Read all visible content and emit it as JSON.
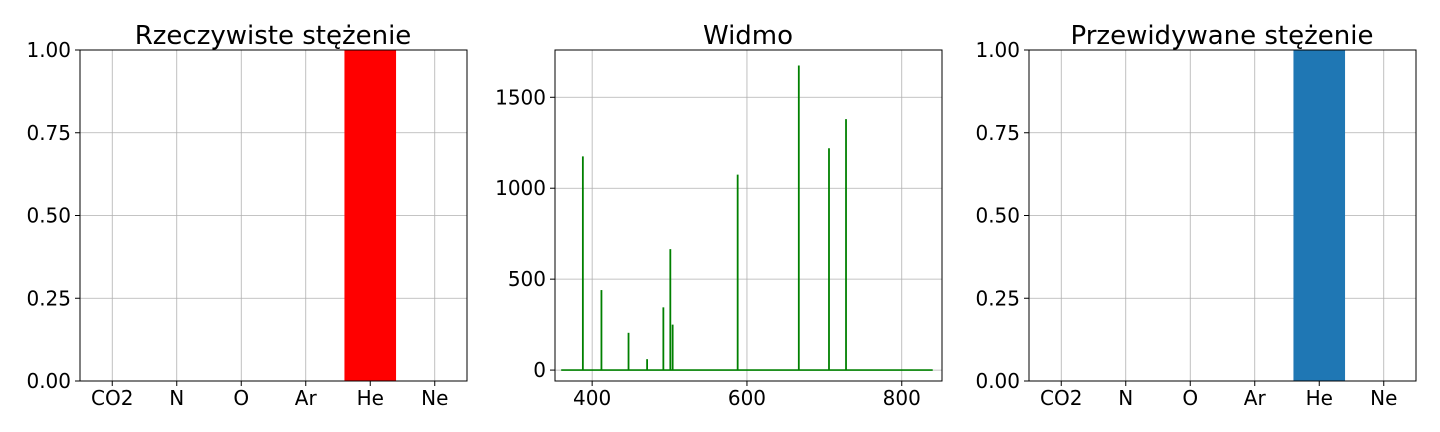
{
  "chart_data": [
    {
      "type": "bar",
      "title": "Rzeczywiste stężenie",
      "categories": [
        "CO2",
        "N",
        "O",
        "Ar",
        "He",
        "Ne"
      ],
      "values": [
        0,
        0,
        0,
        0,
        1.0,
        0
      ],
      "ylim": [
        0,
        1.0
      ],
      "yticks": [
        "0.00",
        "0.25",
        "0.50",
        "0.75",
        "1.00"
      ],
      "bar_color": "#ff0000",
      "grid": true
    },
    {
      "type": "line",
      "title": "Widmo",
      "xlim": [
        352,
        852
      ],
      "ylim": [
        -60,
        1760
      ],
      "xticks": [
        400,
        600,
        800
      ],
      "yticks": [
        0,
        500,
        1000,
        1500
      ],
      "line_color": "#008000",
      "grid": true,
      "baseline_range": [
        360,
        840
      ],
      "peaks": [
        {
          "x": 388,
          "y": 1175
        },
        {
          "x": 412,
          "y": 440
        },
        {
          "x": 447,
          "y": 205
        },
        {
          "x": 471,
          "y": 60
        },
        {
          "x": 492,
          "y": 345
        },
        {
          "x": 501,
          "y": 665
        },
        {
          "x": 504,
          "y": 250
        },
        {
          "x": 588,
          "y": 1075
        },
        {
          "x": 667,
          "y": 1675
        },
        {
          "x": 706,
          "y": 1220
        },
        {
          "x": 728,
          "y": 1380
        }
      ]
    },
    {
      "type": "bar",
      "title": "Przewidywane stężenie",
      "categories": [
        "CO2",
        "N",
        "O",
        "Ar",
        "He",
        "Ne"
      ],
      "values": [
        0,
        0,
        0,
        0,
        1.0,
        0
      ],
      "ylim": [
        0,
        1.0
      ],
      "yticks": [
        "0.00",
        "0.25",
        "0.50",
        "0.75",
        "1.00"
      ],
      "bar_color": "#1f77b4",
      "grid": true
    }
  ]
}
